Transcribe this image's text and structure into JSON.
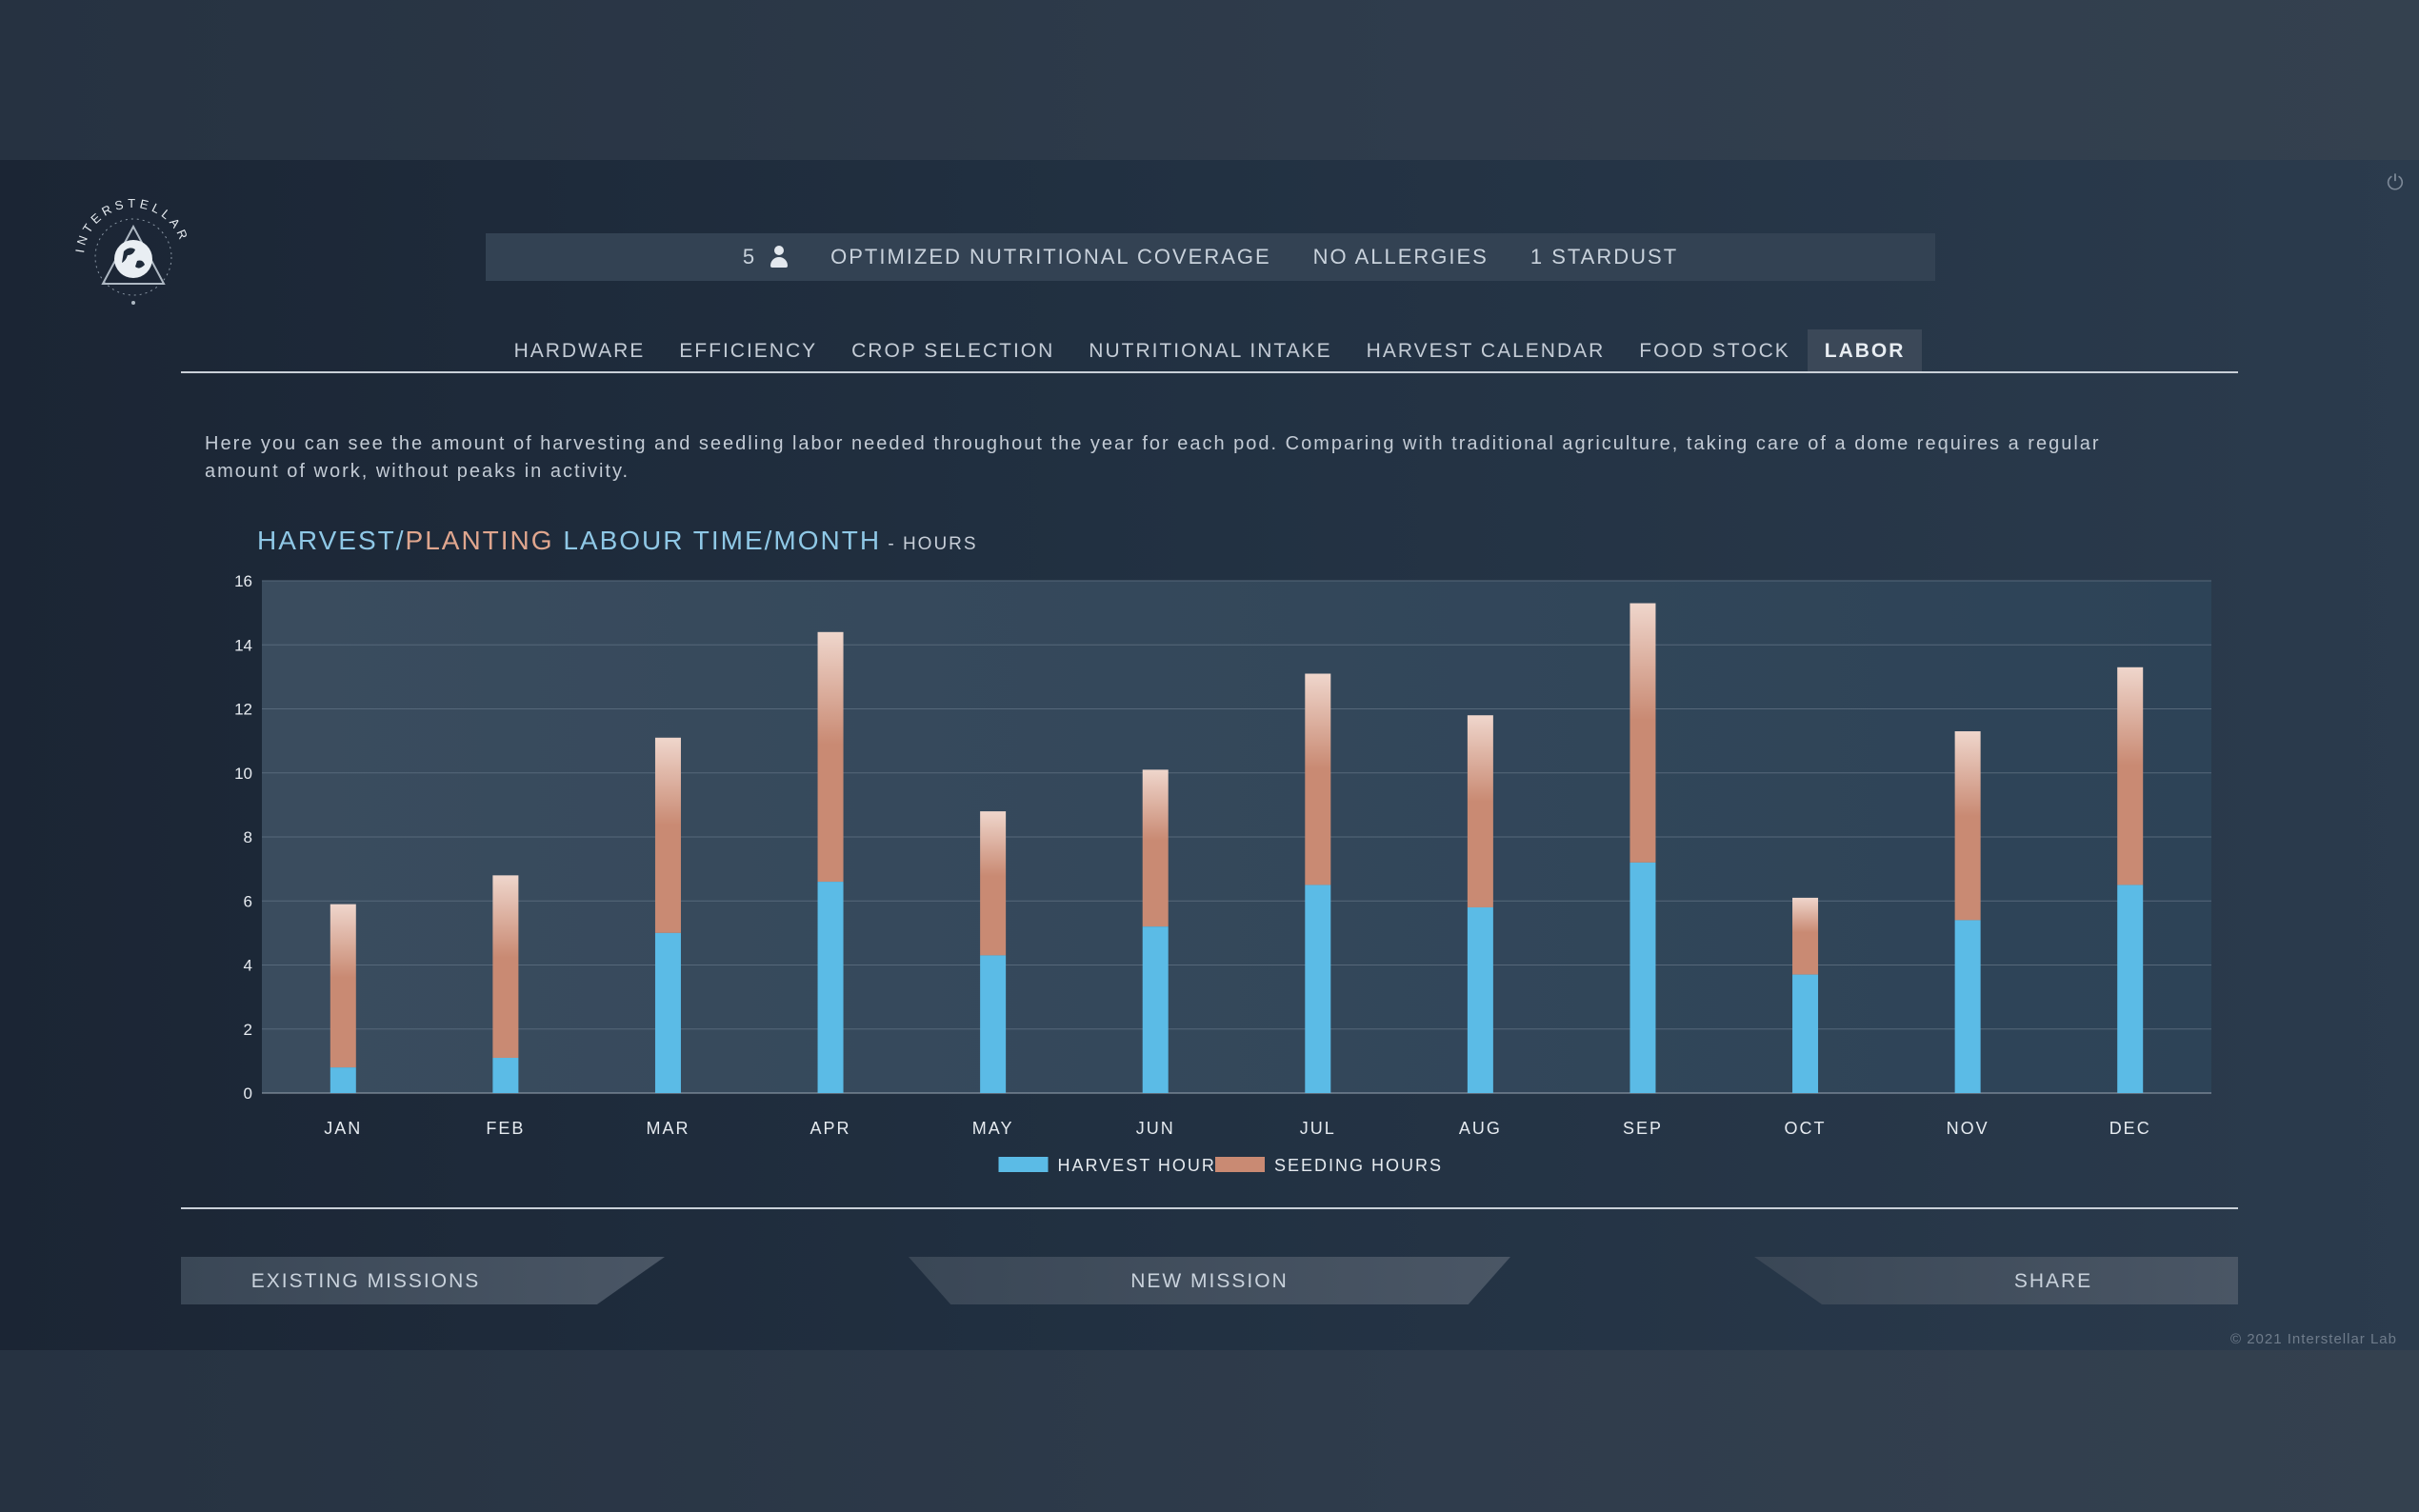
{
  "header": {
    "logo_text": "INTERSTELLAR",
    "people_count": "5",
    "coverage": "OPTIMIZED NUTRITIONAL COVERAGE",
    "allergies": "NO ALLERGIES",
    "stardust": "1 STARDUST"
  },
  "tabs": [
    {
      "label": "HARDWARE"
    },
    {
      "label": "EFFICIENCY"
    },
    {
      "label": "CROP SELECTION"
    },
    {
      "label": "NUTRITIONAL INTAKE"
    },
    {
      "label": "HARVEST CALENDAR"
    },
    {
      "label": "FOOD STOCK"
    },
    {
      "label": "LABOR",
      "active": true
    }
  ],
  "intro_text": "Here you can see the amount of harvesting and seedling labor needed throughout the year for each pod. Comparing with traditional agriculture, taking care of a dome requires a regular amount of work, without peaks in activity.",
  "chart_title": {
    "part1": "HARVEST/",
    "part2": "PLANTING",
    "part3": " LABOUR TIME/MONTH",
    "unit": " - HOURS"
  },
  "chart_data": {
    "type": "bar",
    "stacked": true,
    "categories": [
      "JAN",
      "FEB",
      "MAR",
      "APR",
      "MAY",
      "JUN",
      "JUL",
      "AUG",
      "SEP",
      "OCT",
      "NOV",
      "DEC"
    ],
    "series": [
      {
        "name": "HARVEST HOURS",
        "color": "#5bbbe6",
        "values": [
          0.8,
          1.1,
          5.0,
          6.6,
          4.3,
          5.2,
          6.5,
          5.8,
          7.2,
          3.7,
          5.4,
          6.5
        ]
      },
      {
        "name": "SEEDING HOURS",
        "color": "#c98a73",
        "values": [
          5.1,
          5.7,
          6.1,
          7.8,
          4.5,
          4.9,
          6.6,
          6.0,
          8.1,
          2.4,
          5.9,
          6.8
        ]
      }
    ],
    "ylim": [
      0,
      16
    ],
    "yticks": [
      "0",
      "2",
      "4",
      "6",
      "8",
      "10",
      "12",
      "14",
      "16"
    ],
    "grid": true,
    "legend_position": "bottom-center"
  },
  "buttons": {
    "existing": "EXISTING MISSIONS",
    "new": "NEW MISSION",
    "share": "SHARE"
  },
  "copyright": "© 2021 Interstellar Lab",
  "colors": {
    "accent_blue": "#5bbbe6",
    "accent_orange": "#c98a73",
    "title_blue": "#8fc8e6"
  }
}
